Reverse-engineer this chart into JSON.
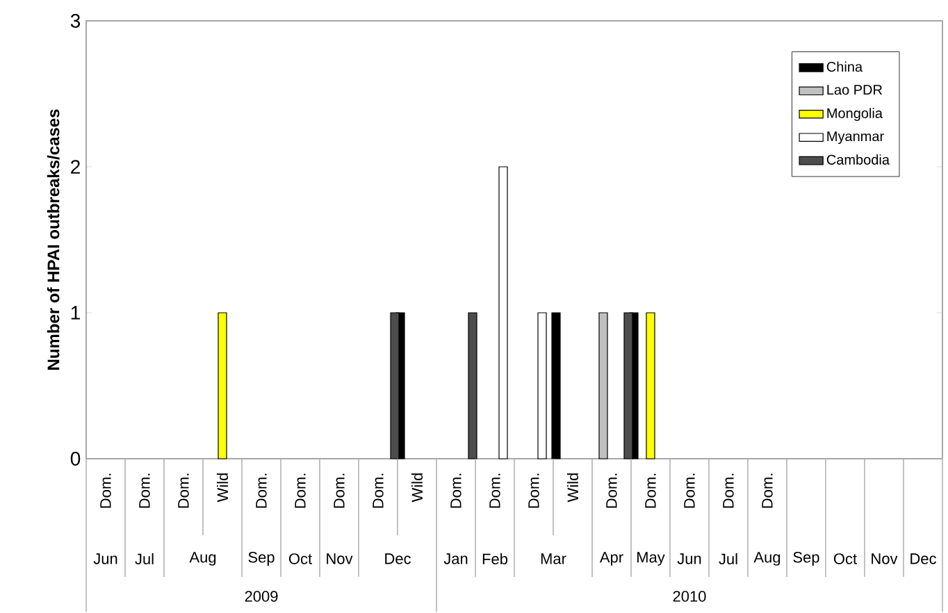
{
  "chart_data": {
    "type": "bar",
    "ylabel": "Number of HPAI outbreaks/cases",
    "categories": [
      "Dom.",
      "Dom.",
      "Dom.",
      "Wild",
      "Dom.",
      "Dom.",
      "Dom.",
      "Dom.",
      "Wild",
      "Dom.",
      "Dom.",
      "Dom.",
      "Wild",
      "Dom.",
      "Dom.",
      "Dom.",
      "Dom.",
      "Dom.",
      null,
      null,
      null,
      null
    ],
    "series": [
      {
        "name": "China",
        "color": "#000000",
        "values": [
          null,
          null,
          null,
          null,
          null,
          null,
          null,
          null,
          1,
          null,
          null,
          null,
          1,
          null,
          1,
          null,
          null,
          null,
          null,
          null,
          null,
          null
        ]
      },
      {
        "name": "Lao PDR",
        "color": "#c0c0c0",
        "values": [
          null,
          null,
          null,
          null,
          null,
          null,
          null,
          null,
          null,
          null,
          null,
          null,
          null,
          1,
          null,
          null,
          null,
          null,
          null,
          null,
          null,
          null
        ]
      },
      {
        "name": "Mongolia",
        "color": "#ffff00",
        "values": [
          null,
          null,
          null,
          1,
          null,
          null,
          null,
          null,
          null,
          null,
          null,
          null,
          null,
          null,
          1,
          null,
          null,
          null,
          null,
          null,
          null,
          null
        ]
      },
      {
        "name": "Myanmar",
        "color": "#ffffff",
        "values": [
          null,
          null,
          null,
          null,
          null,
          null,
          null,
          null,
          null,
          null,
          2,
          1,
          null,
          null,
          null,
          null,
          null,
          null,
          null,
          null,
          null,
          null
        ]
      },
      {
        "name": "Cambodia",
        "color": "#4d4d4d",
        "values": [
          null,
          null,
          null,
          null,
          null,
          null,
          null,
          1,
          null,
          1,
          null,
          null,
          null,
          1,
          null,
          null,
          null,
          null,
          null,
          null,
          null,
          null
        ]
      }
    ],
    "annotations": [
      "Jun",
      "Jul",
      "Aug",
      "Sep",
      "Oct",
      "Nov",
      "Dec",
      "Jan",
      "Feb",
      "Mar",
      "Apr",
      "May",
      "Jun",
      "Jul",
      "Aug",
      "Sep",
      "Oct",
      "Nov",
      "Dec",
      "2009",
      "2010"
    ],
    "ylim": [
      0,
      3
    ],
    "yticks": [
      0,
      1,
      2,
      3
    ],
    "grid": false,
    "legend": "top right"
  }
}
